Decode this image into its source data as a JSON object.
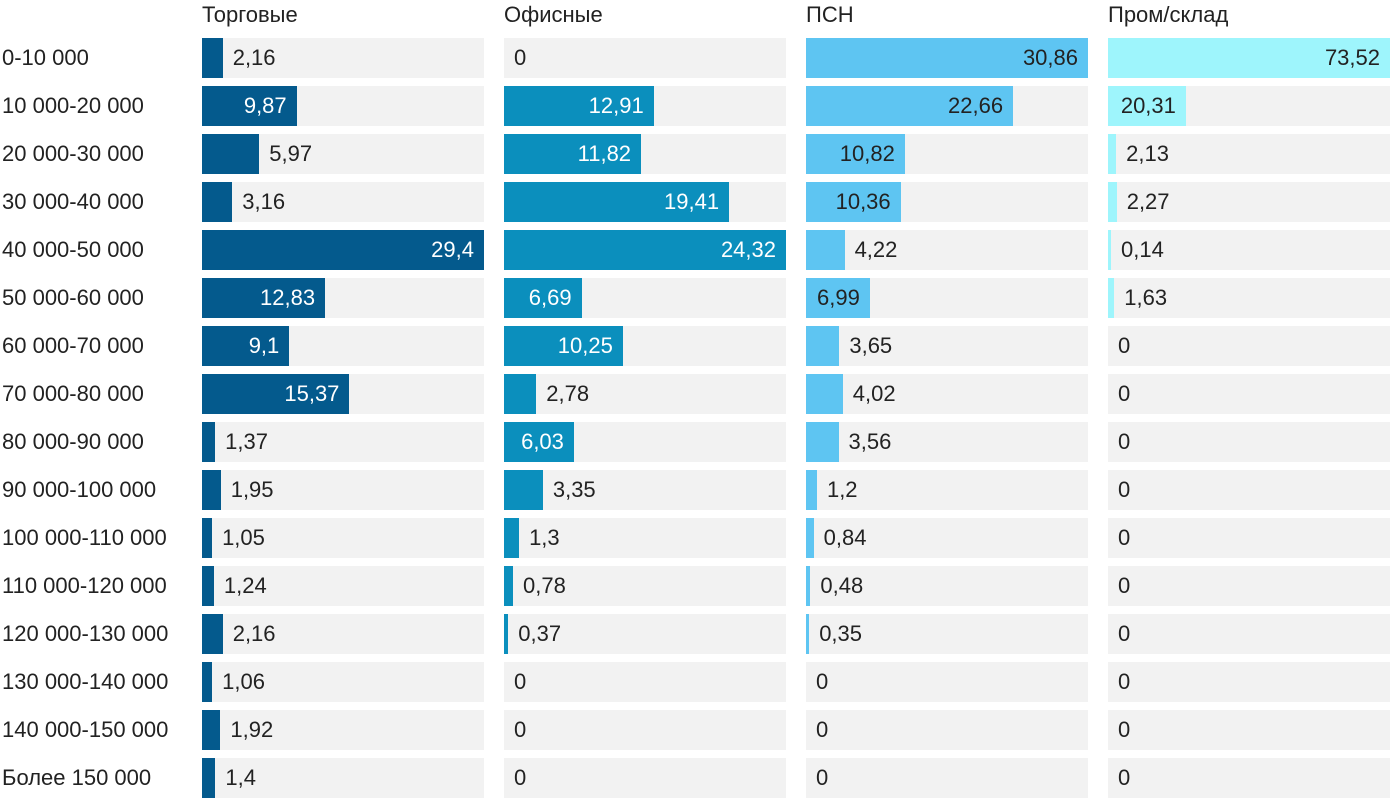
{
  "chart_data": {
    "type": "bar",
    "orientation": "horizontal",
    "layout": "small-multiples",
    "title": "",
    "categories": [
      "0-10 000",
      "10 000-20 000",
      "20 000-30 000",
      "30 000-40 000",
      "40 000-50 000",
      "50 000-60 000",
      "60 000-70 000",
      "70 000-80 000",
      "80 000-90 000",
      "90 000-100 000",
      "100 000-110 000",
      "110 000-120 000",
      "120 000-130 000",
      "130 000-140 000",
      "140 000-150 000",
      "Более 150 000"
    ],
    "series": [
      {
        "name": "Торговые",
        "color": "#045a8d",
        "label_inside_color": "#ffffff",
        "max": 29.4,
        "values": [
          2.16,
          9.87,
          5.97,
          3.16,
          29.4,
          12.83,
          9.1,
          15.37,
          1.37,
          1.95,
          1.05,
          1.24,
          2.16,
          1.06,
          1.92,
          1.4
        ],
        "labels": [
          "2,16",
          "9,87",
          "5,97",
          "3,16",
          "29,4",
          "12,83",
          "9,1",
          "15,37",
          "1,37",
          "1,95",
          "1,05",
          "1,24",
          "2,16",
          "1,06",
          "1,92",
          "1,4"
        ]
      },
      {
        "name": "Офисные",
        "color": "#0b8fbd",
        "label_inside_color": "#ffffff",
        "max": 24.32,
        "values": [
          0,
          12.91,
          11.82,
          19.41,
          24.32,
          6.69,
          10.25,
          2.78,
          6.03,
          3.35,
          1.3,
          0.78,
          0.37,
          0,
          0,
          0
        ],
        "labels": [
          "0",
          "12,91",
          "11,82",
          "19,41",
          "24,32",
          "6,69",
          "10,25",
          "2,78",
          "6,03",
          "3,35",
          "1,3",
          "0,78",
          "0,37",
          "0",
          "0",
          "0"
        ]
      },
      {
        "name": "ПСН",
        "color": "#5ec5f2",
        "label_inside_color": "#222222",
        "max": 30.86,
        "values": [
          30.86,
          22.66,
          10.82,
          10.36,
          4.22,
          6.99,
          3.65,
          4.02,
          3.56,
          1.2,
          0.84,
          0.48,
          0.35,
          0,
          0,
          0
        ],
        "labels": [
          "30,86",
          "22,66",
          "10,82",
          "10,36",
          "4,22",
          "6,99",
          "3,65",
          "4,02",
          "3,56",
          "1,2",
          "0,84",
          "0,48",
          "0,35",
          "0",
          "0",
          "0"
        ]
      },
      {
        "name": "Пром/склад",
        "color": "#9ef5fc",
        "label_inside_color": "#222222",
        "max": 73.52,
        "values": [
          73.52,
          20.31,
          2.13,
          2.27,
          0.14,
          1.63,
          0,
          0,
          0,
          0,
          0,
          0,
          0,
          0,
          0,
          0
        ],
        "labels": [
          "73,52",
          "20,31",
          "2,13",
          "2,27",
          "0,14",
          "1,63",
          "0",
          "0",
          "0",
          "0",
          "0",
          "0",
          "0",
          "0",
          "0",
          "0"
        ]
      }
    ]
  }
}
